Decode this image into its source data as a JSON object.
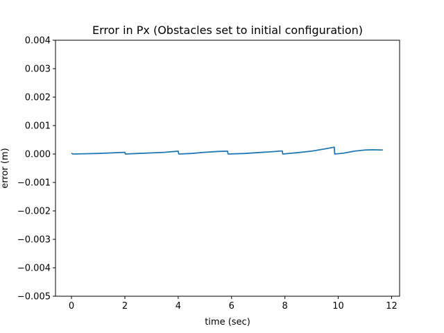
{
  "chart_data": {
    "type": "line",
    "title": "Error in Px (Obstacles set to initial configuration)",
    "xlabel": "time (sec)",
    "ylabel": "error (m)",
    "xlim": [
      -0.6,
      12.3
    ],
    "ylim": [
      -0.005,
      0.004
    ],
    "xticks": [
      0,
      2,
      4,
      6,
      8,
      10,
      12
    ],
    "xtick_labels": [
      "0",
      "2",
      "4",
      "6",
      "8",
      "10",
      "12"
    ],
    "yticks": [
      0.004,
      0.003,
      0.002,
      0.001,
      0.0,
      -0.001,
      -0.002,
      -0.003,
      -0.004,
      -0.005
    ],
    "ytick_labels": [
      "0.004",
      "0.003",
      "0.002",
      "0.001",
      "0.000",
      "−0.001",
      "−0.002",
      "−0.003",
      "−0.004",
      "−0.005"
    ],
    "grid": false,
    "series": [
      {
        "color": "#1f77b4",
        "x": [
          0.0,
          0.05,
          0.5,
          1.0,
          1.5,
          2.0,
          2.02,
          2.5,
          3.0,
          3.5,
          4.0,
          4.02,
          4.5,
          5.0,
          5.5,
          5.85,
          5.87,
          6.5,
          7.0,
          7.5,
          7.9,
          7.92,
          8.5,
          9.0,
          9.5,
          9.85,
          9.87,
          10.2,
          10.6,
          11.0,
          11.3,
          11.67
        ],
        "y": [
          3e-05,
          0.0,
          1e-05,
          2e-05,
          4e-05,
          6e-05,
          0.0,
          2e-05,
          4e-05,
          6e-05,
          0.0001,
          0.0,
          2e-05,
          6e-05,
          9e-05,
          0.0001,
          0.0,
          2e-05,
          5e-05,
          8e-05,
          0.00011,
          0.0,
          5e-05,
          0.0001,
          0.00018,
          0.00024,
          0.0,
          3e-05,
          0.0001,
          0.00014,
          0.00015,
          0.00014
        ]
      }
    ]
  }
}
